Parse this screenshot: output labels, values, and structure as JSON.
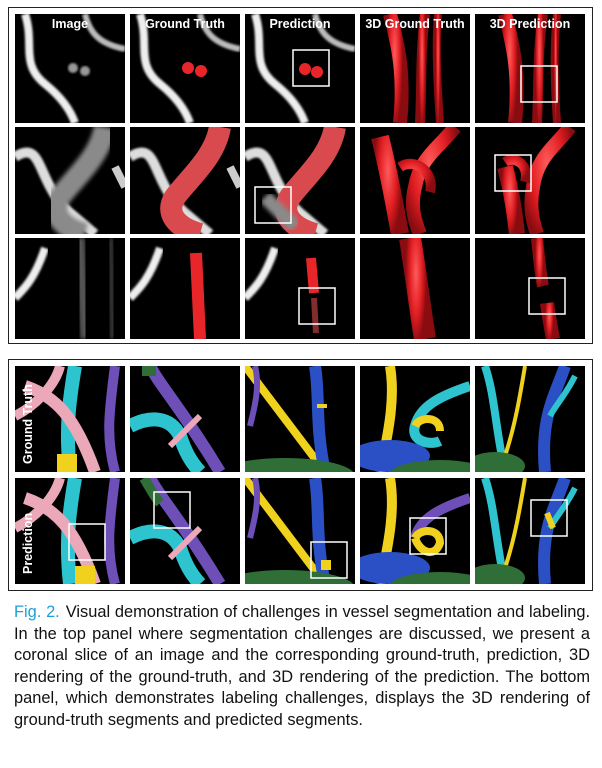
{
  "figure": {
    "top_panel": {
      "columns": [
        "Image",
        "Ground Truth",
        "Prediction",
        "3D Ground Truth",
        "3D Prediction"
      ]
    },
    "bottom_panel": {
      "rows": [
        "Ground Truth",
        "Prediction"
      ]
    },
    "caption": {
      "label": "Fig. 2.",
      "text": "Visual demonstration of challenges in vessel segmentation and labeling. In the top panel where segmentation challenges are discussed, we present a coronal slice of an image and the corresponding ground-truth, prediction, 3D rendering of the ground-truth, and 3D rendering of the prediction. The bottom panel, which demonstrates labeling challenges, displays the 3D rendering of ground-truth segments and predicted segments."
    },
    "colors": {
      "caption_label": "#1f9fd5",
      "mask_red": "#e8262a",
      "segment_cyan": "#2ec4cf",
      "segment_pink": "#eaa8b8",
      "segment_yellow": "#f0d21e",
      "segment_purple": "#6e4fb8",
      "segment_blue": "#2b4fc4",
      "segment_green": "#2f6e37"
    }
  }
}
